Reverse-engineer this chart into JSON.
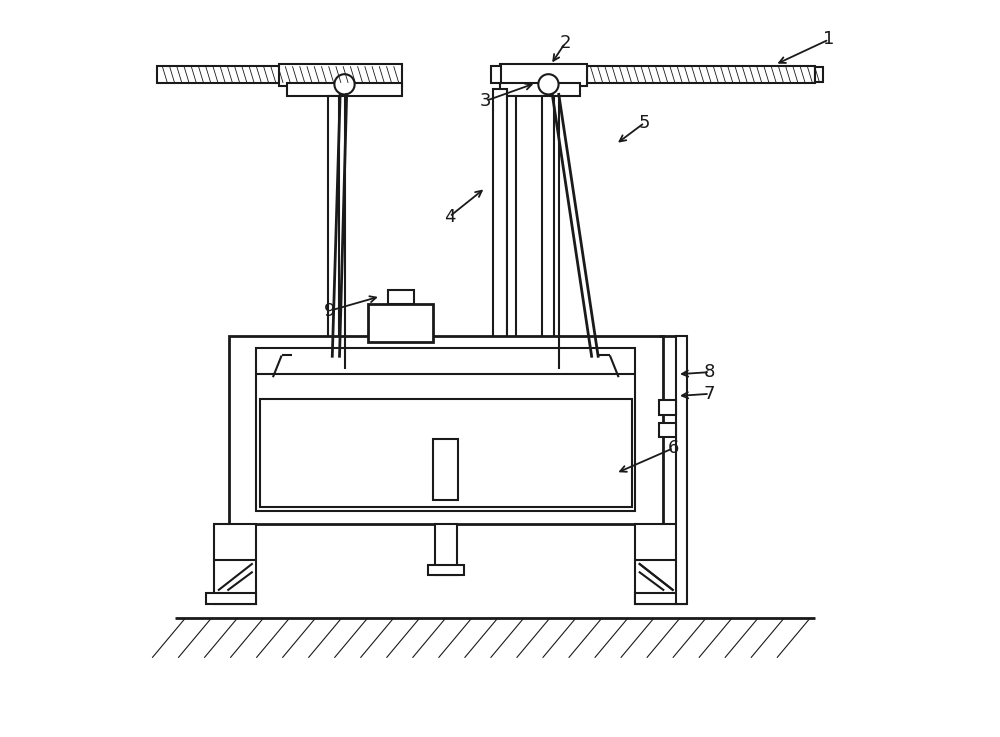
{
  "bg_color": "#ffffff",
  "line_color": "#1a1a1a",
  "lw": 1.5,
  "lw2": 2.0,
  "lw_thin": 0.8,
  "figsize": [
    10.0,
    7.37
  ],
  "dpi": 100,
  "annotations": {
    "1": {
      "text": [
        0.955,
        0.955
      ],
      "arrow": [
        0.88,
        0.92
      ]
    },
    "2": {
      "text": [
        0.59,
        0.95
      ],
      "arrow": [
        0.57,
        0.92
      ]
    },
    "3": {
      "text": [
        0.48,
        0.87
      ],
      "arrow": [
        0.55,
        0.895
      ]
    },
    "4": {
      "text": [
        0.43,
        0.71
      ],
      "arrow": [
        0.48,
        0.75
      ]
    },
    "5": {
      "text": [
        0.7,
        0.84
      ],
      "arrow": [
        0.66,
        0.81
      ]
    },
    "6": {
      "text": [
        0.74,
        0.39
      ],
      "arrow": [
        0.66,
        0.355
      ]
    },
    "7": {
      "text": [
        0.79,
        0.465
      ],
      "arrow": [
        0.745,
        0.462
      ]
    },
    "8": {
      "text": [
        0.79,
        0.495
      ],
      "arrow": [
        0.745,
        0.492
      ]
    },
    "9": {
      "text": [
        0.265,
        0.58
      ],
      "arrow": [
        0.335,
        0.6
      ]
    }
  }
}
